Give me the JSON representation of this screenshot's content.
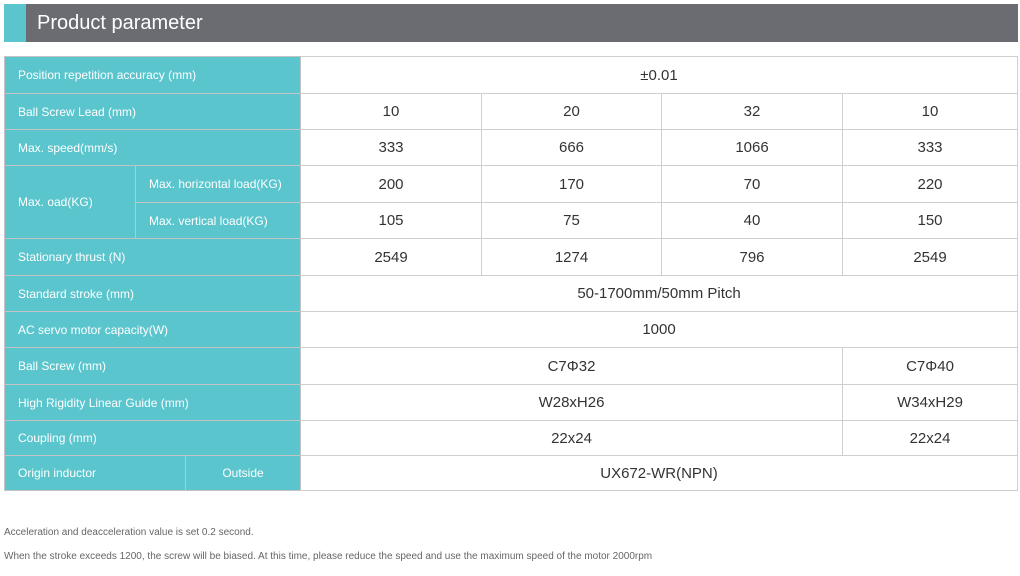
{
  "header": {
    "title": "Product parameter",
    "accent": "#5bc5cd",
    "bar_color": "#6b6c71"
  },
  "table": {
    "position_accuracy": {
      "label": "Position repetition accuracy (mm)",
      "value": "±0.01"
    },
    "lead": {
      "label": "Ball Screw Lead (mm)",
      "values": [
        "10",
        "20",
        "32",
        "10"
      ]
    },
    "speed": {
      "label": "Max. speed(mm/s)",
      "values": [
        "333",
        "666",
        "1066",
        "333"
      ]
    },
    "load": {
      "label": "Max. oad(KG)",
      "horizontal": {
        "label": "Max. horizontal load(KG)",
        "values": [
          "200",
          "170",
          "70",
          "220"
        ]
      },
      "vertical": {
        "label": "Max. vertical load(KG)",
        "values": [
          "105",
          "75",
          "40",
          "150"
        ]
      }
    },
    "thrust": {
      "label": "Stationary thrust (N)",
      "values": [
        "2549",
        "1274",
        "796",
        "2549"
      ]
    },
    "stroke": {
      "label": "Standard stroke (mm)",
      "value": "50-1700mm/50mm Pitch"
    },
    "motor": {
      "label": "AC servo motor capacity(W)",
      "value": "1000"
    },
    "ball_screw": {
      "label": "Ball Screw (mm)",
      "values": [
        "C7Φ32",
        "C7Φ40"
      ]
    },
    "guide": {
      "label": "High Rigidity Linear Guide (mm)",
      "values": [
        "W28xH26",
        "W34xH29"
      ]
    },
    "coupling": {
      "label": "Coupling (mm)",
      "values": [
        "22x24",
        "22x24"
      ]
    },
    "origin": {
      "label": "Origin inductor",
      "sub": "Outside",
      "value": "UX672-WR(NPN)"
    }
  },
  "notes": [
    "Acceleration and deacceleration value is set 0.2 second.",
    "When the stroke exceeds 1200, the screw will be biased. At this time, please reduce the speed and use the maximum speed of the motor 2000rpm"
  ]
}
